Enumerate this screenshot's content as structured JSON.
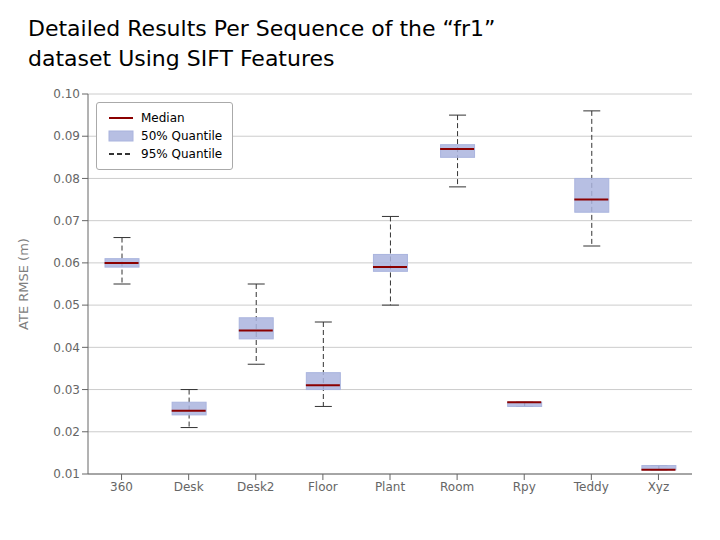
{
  "chart_data": {
    "type": "box",
    "title": "Detailed Results Per Sequence of the “fr1”",
    "subtitle": "dataset Using SIFT Features",
    "ylabel": "ATE RMSE (m)",
    "categories": [
      "360",
      "Desk",
      "Desk2",
      "Floor",
      "Plant",
      "Room",
      "Rpy",
      "Teddy",
      "Xyz"
    ],
    "series": [
      {
        "name": "Median",
        "color": "#8b0000",
        "line_style": "solid",
        "values": [
          0.06,
          0.025,
          0.044,
          0.031,
          0.059,
          0.087,
          0.027,
          0.075,
          0.011
        ]
      },
      {
        "name": "50% Quantile",
        "color": "#aab4de",
        "values": [
          [
            0.059,
            0.061
          ],
          [
            0.024,
            0.027
          ],
          [
            0.042,
            0.047
          ],
          [
            0.03,
            0.034
          ],
          [
            0.058,
            0.062
          ],
          [
            0.085,
            0.088
          ],
          [
            0.026,
            0.027
          ],
          [
            0.072,
            0.08
          ],
          [
            0.011,
            0.012
          ]
        ]
      },
      {
        "name": "95% Quantile",
        "color": "#333333",
        "line_style": "dashed",
        "values": [
          [
            0.055,
            0.066
          ],
          [
            0.021,
            0.03
          ],
          [
            0.036,
            0.055
          ],
          [
            0.026,
            0.046
          ],
          [
            0.05,
            0.071
          ],
          [
            0.078,
            0.095
          ],
          [
            0.026,
            0.027
          ],
          [
            0.064,
            0.096
          ],
          [
            0.011,
            0.012
          ]
        ]
      }
    ],
    "ylim": [
      0.01,
      0.1
    ],
    "yticks": [
      0.01,
      0.02,
      0.03,
      0.04,
      0.05,
      0.06,
      0.07,
      0.08,
      0.09,
      {
        "value": 0.1,
        "label": "0.10"
      }
    ],
    "grid": true,
    "legend": "upper left"
  }
}
